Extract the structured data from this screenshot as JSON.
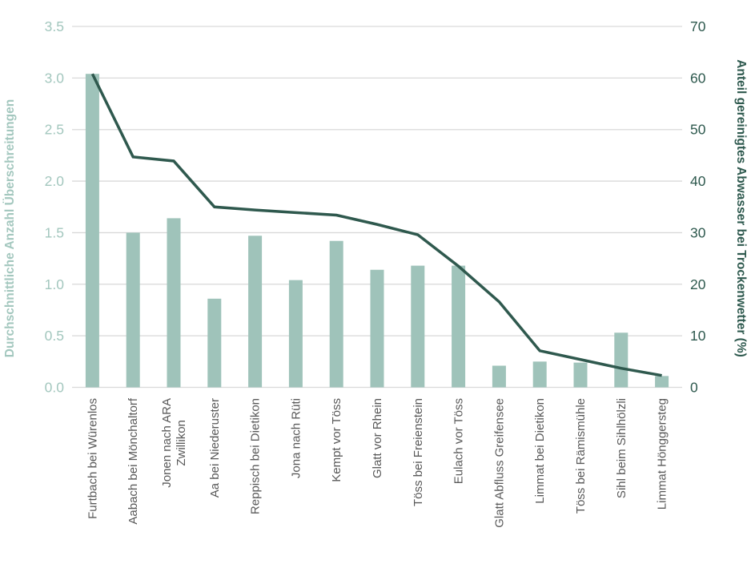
{
  "chart_data": {
    "type": "bar",
    "subtype": "combo-bar-line-dual-axis",
    "title": "",
    "categories": [
      "Furtbach bei Würenlos",
      "Aabach bei Mönchaltorf",
      "Jonen nach ARA\nZwillikon",
      "Aa bei Niederuster",
      "Reppisch bei Dietikon",
      "Jona nach Rüti",
      "Kempt vor Töss",
      "Glatt vor Rhein",
      "Töss bei Freienstein",
      "Eulach vor Töss",
      "Glatt Abfluss Greifensee",
      "Limmat bei Dietikon",
      "Töss bei Rämismühle",
      "Sihl beim Sihlhölzli",
      "Limmat Hönggersteg"
    ],
    "series": [
      {
        "name": "Durchschnittliche Anzahl Überschreitungen",
        "type": "bar",
        "axis": "left",
        "values": [
          3.04,
          1.5,
          1.64,
          0.86,
          1.47,
          1.04,
          1.42,
          1.14,
          1.18,
          1.18,
          0.21,
          0.25,
          0.24,
          0.53,
          0.11
        ]
      },
      {
        "name": "Anteil gereinigtes Abwasser bei Trockenwetter (%)",
        "type": "line",
        "axis": "right",
        "values": [
          60.8,
          44.7,
          43.9,
          35.0,
          34.4,
          33.9,
          33.4,
          31.6,
          29.6,
          23.5,
          16.6,
          7.1,
          5.4,
          3.7,
          2.3
        ]
      }
    ],
    "left_axis": {
      "label": "Durchschnittliche Anzahl Überschreitungen",
      "min": 0,
      "max": 3.5,
      "step": 0.5,
      "tick_labels": [
        "0.0",
        "0.5",
        "1.0",
        "1.5",
        "2.0",
        "2.5",
        "3.0",
        "3.5"
      ]
    },
    "right_axis": {
      "label": "Anteil gereinigtes Abwasser bei Trockenwetter (%)",
      "min": 0,
      "max": 70,
      "step": 10,
      "tick_labels": [
        "0",
        "10",
        "20",
        "30",
        "40",
        "50",
        "60",
        "70"
      ]
    },
    "grid": true,
    "legend": "none",
    "colors": {
      "bar": "#9fc3ba",
      "line": "#2f594e",
      "left_axis_text": "#a3c7be",
      "right_axis_text": "#2e594e",
      "category_text": "#595959",
      "gridline": "#d9d9d9",
      "background": "#ffffff"
    }
  }
}
